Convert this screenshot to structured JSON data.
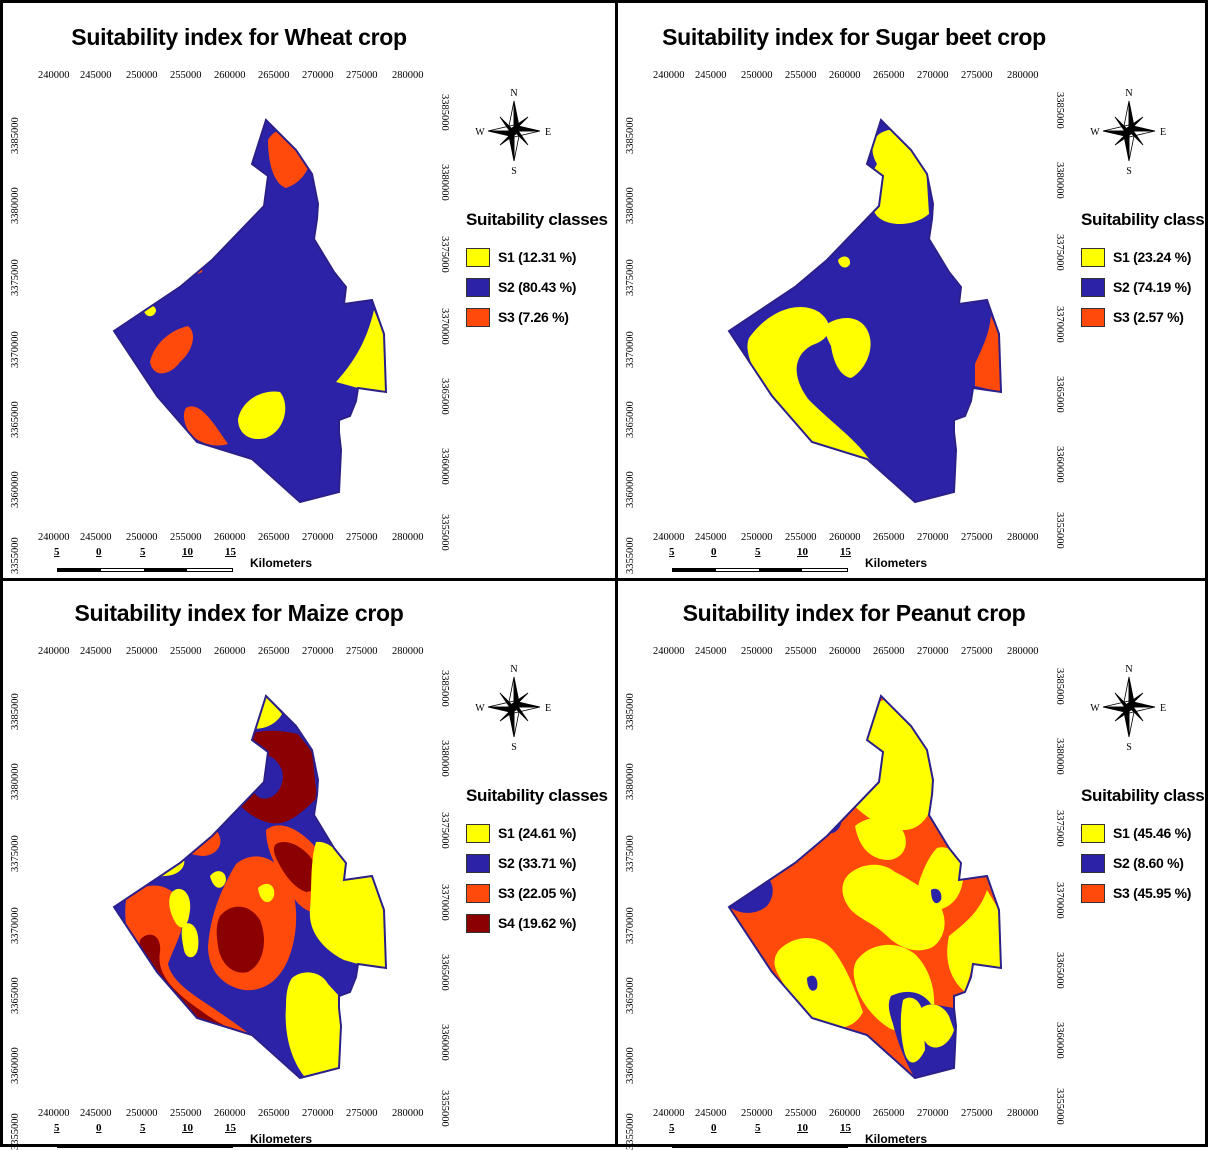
{
  "colors": {
    "S1": "#ffff00",
    "S2": "#2c22a8",
    "S3": "#ff4a0c",
    "S4": "#8b0000",
    "outline": "#2b1f8a"
  },
  "x_ticks": [
    "240000",
    "245000",
    "250000",
    "255000",
    "260000",
    "265000",
    "270000",
    "275000",
    "280000"
  ],
  "y_ticks": [
    "3385000",
    "3380000",
    "3375000",
    "3370000",
    "3365000",
    "3360000",
    "3355000"
  ],
  "compass": {
    "n": "N",
    "s": "S",
    "e": "E",
    "w": "W"
  },
  "legend_title": "Suitability classes",
  "scale": {
    "ticks": [
      "5",
      "0",
      "5",
      "10",
      "15"
    ],
    "unit": "Kilometers"
  },
  "panels": [
    {
      "title": "Suitability index for Wheat crop",
      "base": "S2",
      "legend": [
        {
          "class": "S1",
          "label": "S1 (12.31 %)"
        },
        {
          "class": "S2",
          "label": "S2 (80.43 %)"
        },
        {
          "class": "S3",
          "label": "S3 (7.26 %)"
        }
      ]
    },
    {
      "title": "Suitability index for Sugar beet crop",
      "base": "S2",
      "legend": [
        {
          "class": "S1",
          "label": "S1 (23.24 %)"
        },
        {
          "class": "S2",
          "label": "S2 (74.19 %)"
        },
        {
          "class": "S3",
          "label": "S3 (2.57 %)"
        }
      ]
    },
    {
      "title": "Suitability index for Maize crop",
      "base": "S2",
      "legend": [
        {
          "class": "S1",
          "label": "S1 (24.61 %)"
        },
        {
          "class": "S2",
          "label": "S2 (33.71 %)"
        },
        {
          "class": "S3",
          "label": "S3 (22.05 %)"
        },
        {
          "class": "S4",
          "label": "S4 (19.62 %)"
        }
      ]
    },
    {
      "title": "Suitability index for Peanut crop",
      "base": "S3",
      "legend": [
        {
          "class": "S1",
          "label": "S1 (45.46 %)"
        },
        {
          "class": "S2",
          "label": "S2 (8.60 %)"
        },
        {
          "class": "S3",
          "label": "S3 (45.95 %)"
        }
      ]
    }
  ]
}
